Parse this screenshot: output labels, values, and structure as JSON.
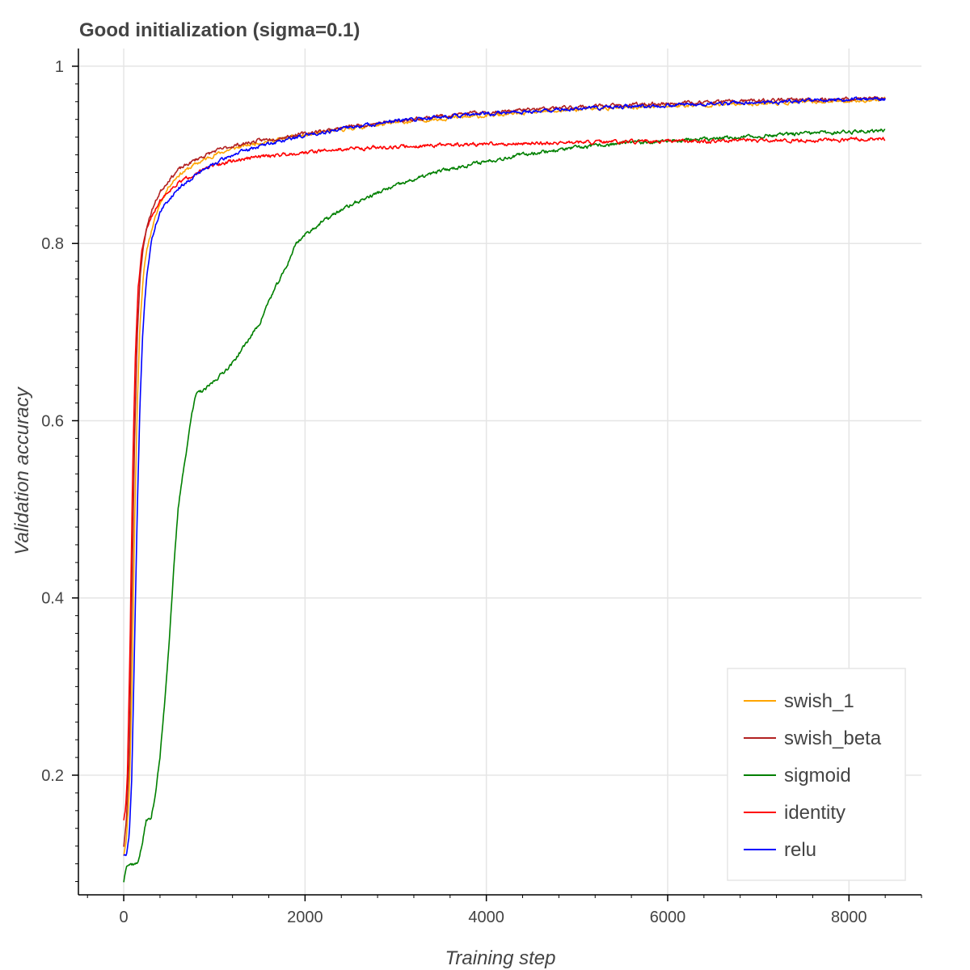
{
  "chart_data": {
    "type": "line",
    "title": "Good initialization (sigma=0.1)",
    "xlabel": "Training step",
    "ylabel": "Validation accuracy",
    "xlim": [
      -500,
      8800
    ],
    "ylim": [
      0.065,
      1.02
    ],
    "x_ticks": [
      0,
      2000,
      4000,
      6000,
      8000
    ],
    "x_tick_labels": [
      "0",
      "2000",
      "4000",
      "6000",
      "8000"
    ],
    "y_ticks": [
      0.2,
      0.4,
      0.6,
      0.8,
      1.0
    ],
    "y_tick_labels": [
      "0.2",
      "0.4",
      "0.6",
      "0.8",
      "1"
    ],
    "grid": true,
    "legend_position": "bottom-right",
    "series": [
      {
        "name": "swish_1",
        "color": "#ffa500",
        "points": [
          [
            0,
            0.11
          ],
          [
            30,
            0.13
          ],
          [
            60,
            0.18
          ],
          [
            90,
            0.3
          ],
          [
            120,
            0.48
          ],
          [
            150,
            0.62
          ],
          [
            180,
            0.71
          ],
          [
            220,
            0.77
          ],
          [
            270,
            0.8
          ],
          [
            320,
            0.82
          ],
          [
            400,
            0.845
          ],
          [
            500,
            0.865
          ],
          [
            600,
            0.877
          ],
          [
            800,
            0.89
          ],
          [
            1000,
            0.9
          ],
          [
            1200,
            0.907
          ],
          [
            1500,
            0.914
          ],
          [
            2000,
            0.922
          ],
          [
            2500,
            0.93
          ],
          [
            3000,
            0.936
          ],
          [
            3500,
            0.941
          ],
          [
            4000,
            0.944
          ],
          [
            5000,
            0.951
          ],
          [
            6000,
            0.955
          ],
          [
            7000,
            0.958
          ],
          [
            8000,
            0.961
          ],
          [
            8400,
            0.962
          ]
        ]
      },
      {
        "name": "swish_beta",
        "color": "#b22222",
        "points": [
          [
            0,
            0.12
          ],
          [
            30,
            0.15
          ],
          [
            60,
            0.22
          ],
          [
            90,
            0.4
          ],
          [
            120,
            0.58
          ],
          [
            150,
            0.7
          ],
          [
            180,
            0.76
          ],
          [
            220,
            0.8
          ],
          [
            270,
            0.825
          ],
          [
            320,
            0.84
          ],
          [
            400,
            0.858
          ],
          [
            500,
            0.872
          ],
          [
            600,
            0.883
          ],
          [
            800,
            0.895
          ],
          [
            1000,
            0.904
          ],
          [
            1200,
            0.91
          ],
          [
            1500,
            0.916
          ],
          [
            2000,
            0.924
          ],
          [
            2500,
            0.932
          ],
          [
            3000,
            0.938
          ],
          [
            3500,
            0.944
          ],
          [
            4000,
            0.948
          ],
          [
            5000,
            0.954
          ],
          [
            6000,
            0.958
          ],
          [
            7000,
            0.961
          ],
          [
            8000,
            0.963
          ],
          [
            8400,
            0.964
          ]
        ]
      },
      {
        "name": "sigmoid",
        "color": "#008000",
        "points": [
          [
            0,
            0.08
          ],
          [
            30,
            0.1
          ],
          [
            60,
            0.1
          ],
          [
            150,
            0.1
          ],
          [
            200,
            0.12
          ],
          [
            250,
            0.15
          ],
          [
            300,
            0.15
          ],
          [
            350,
            0.18
          ],
          [
            400,
            0.22
          ],
          [
            450,
            0.28
          ],
          [
            500,
            0.35
          ],
          [
            550,
            0.43
          ],
          [
            600,
            0.5
          ],
          [
            650,
            0.54
          ],
          [
            700,
            0.57
          ],
          [
            750,
            0.61
          ],
          [
            800,
            0.63
          ],
          [
            900,
            0.635
          ],
          [
            1000,
            0.645
          ],
          [
            1100,
            0.655
          ],
          [
            1200,
            0.665
          ],
          [
            1300,
            0.68
          ],
          [
            1400,
            0.695
          ],
          [
            1500,
            0.71
          ],
          [
            1600,
            0.735
          ],
          [
            1700,
            0.755
          ],
          [
            1800,
            0.775
          ],
          [
            1900,
            0.8
          ],
          [
            2000,
            0.81
          ],
          [
            2200,
            0.825
          ],
          [
            2400,
            0.838
          ],
          [
            2600,
            0.848
          ],
          [
            2800,
            0.857
          ],
          [
            3000,
            0.865
          ],
          [
            3200,
            0.872
          ],
          [
            3500,
            0.882
          ],
          [
            4000,
            0.893
          ],
          [
            4500,
            0.902
          ],
          [
            5000,
            0.908
          ],
          [
            5500,
            0.913
          ],
          [
            6000,
            0.916
          ],
          [
            6500,
            0.918
          ],
          [
            7000,
            0.921
          ],
          [
            7500,
            0.924
          ],
          [
            8000,
            0.926
          ],
          [
            8400,
            0.928
          ]
        ]
      },
      {
        "name": "identity",
        "color": "#ff0000",
        "points": [
          [
            0,
            0.15
          ],
          [
            20,
            0.16
          ],
          [
            40,
            0.2
          ],
          [
            70,
            0.35
          ],
          [
            100,
            0.55
          ],
          [
            130,
            0.68
          ],
          [
            160,
            0.75
          ],
          [
            200,
            0.79
          ],
          [
            250,
            0.815
          ],
          [
            300,
            0.83
          ],
          [
            400,
            0.848
          ],
          [
            500,
            0.86
          ],
          [
            600,
            0.868
          ],
          [
            800,
            0.88
          ],
          [
            1000,
            0.888
          ],
          [
            1200,
            0.893
          ],
          [
            1500,
            0.898
          ],
          [
            2000,
            0.903
          ],
          [
            2500,
            0.907
          ],
          [
            3000,
            0.909
          ],
          [
            3500,
            0.911
          ],
          [
            4000,
            0.912
          ],
          [
            5000,
            0.914
          ],
          [
            6000,
            0.915
          ],
          [
            7000,
            0.916
          ],
          [
            8000,
            0.917
          ],
          [
            8400,
            0.918
          ]
        ]
      },
      {
        "name": "relu",
        "color": "#0000ff",
        "points": [
          [
            0,
            0.11
          ],
          [
            30,
            0.11
          ],
          [
            60,
            0.13
          ],
          [
            90,
            0.2
          ],
          [
            120,
            0.35
          ],
          [
            150,
            0.5
          ],
          [
            180,
            0.62
          ],
          [
            210,
            0.7
          ],
          [
            250,
            0.76
          ],
          [
            300,
            0.8
          ],
          [
            350,
            0.82
          ],
          [
            400,
            0.835
          ],
          [
            500,
            0.85
          ],
          [
            600,
            0.862
          ],
          [
            800,
            0.878
          ],
          [
            1000,
            0.89
          ],
          [
            1200,
            0.9
          ],
          [
            1500,
            0.91
          ],
          [
            2000,
            0.922
          ],
          [
            2500,
            0.931
          ],
          [
            3000,
            0.938
          ],
          [
            3500,
            0.943
          ],
          [
            4000,
            0.946
          ],
          [
            5000,
            0.952
          ],
          [
            6000,
            0.956
          ],
          [
            7000,
            0.959
          ],
          [
            8000,
            0.962
          ],
          [
            8400,
            0.963
          ]
        ]
      }
    ]
  }
}
